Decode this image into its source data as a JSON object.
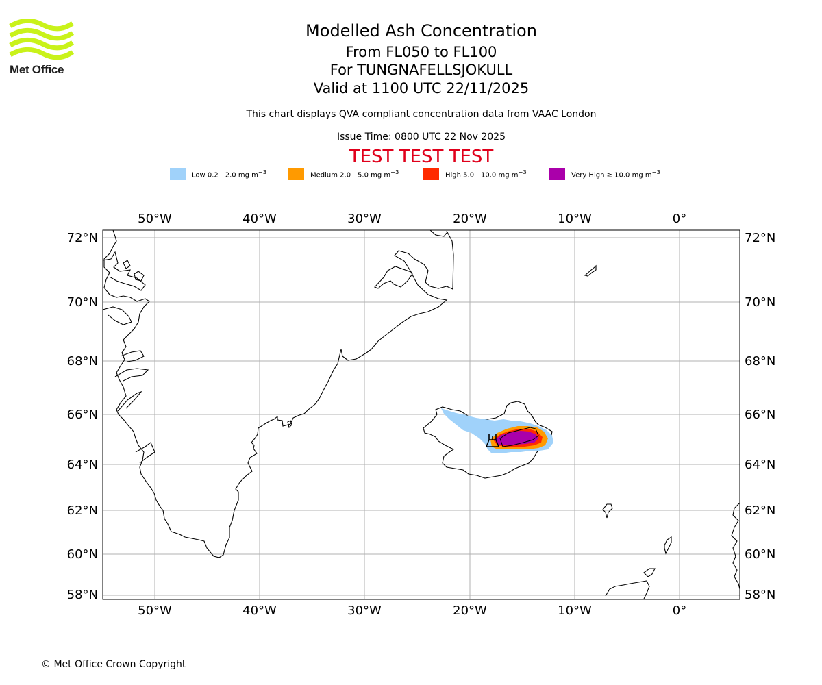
{
  "logo": {
    "name": "Met Office"
  },
  "header": {
    "title": "Modelled Ash Concentration",
    "flight_levels": "From FL050 to FL100",
    "volcano": "For TUNGNAFELLSJOKULL",
    "valid": "Valid at 1100 UTC 22/11/2025",
    "subtitle": "This chart displays QVA compliant concentration data from VAAC London",
    "issue_time": "Issue Time: 0800 UTC 22 Nov 2025",
    "test_banner": "TEST TEST TEST"
  },
  "legend": [
    {
      "label": "Low 0.2 - 2.0 mg m",
      "unit_sup": "−3",
      "color": "#a0d2fa"
    },
    {
      "label": "Medium 2.0 - 5.0 mg m",
      "unit_sup": "−3",
      "color": "#ff9a00"
    },
    {
      "label": "High 5.0 - 10.0 mg m",
      "unit_sup": "−3",
      "color": "#ff2a00"
    },
    {
      "label": "Very High  ≥  10.0 mg m",
      "unit_sup": "−3",
      "color": "#aa00aa"
    }
  ],
  "map": {
    "lon_ticks": [
      "50°W",
      "40°W",
      "30°W",
      "20°W",
      "10°W",
      "0°"
    ],
    "lat_ticks": [
      "72°N",
      "70°N",
      "68°N",
      "66°N",
      "64°N",
      "62°N",
      "60°N",
      "58°N"
    ],
    "lon_values": [
      -50,
      -40,
      -30,
      -20,
      -10,
      0
    ],
    "lat_values": [
      72,
      70,
      68,
      66,
      64,
      62,
      60,
      58
    ]
  },
  "footer": {
    "copyright": "© Met Office Crown Copyright"
  }
}
